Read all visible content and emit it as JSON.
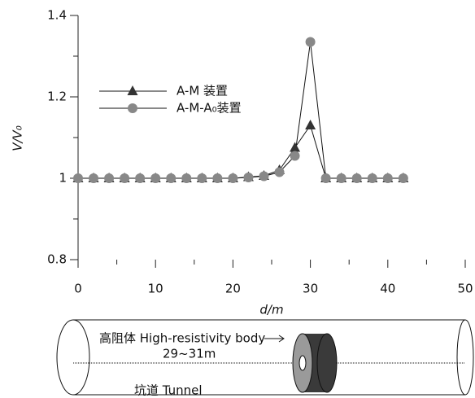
{
  "chart_data": {
    "type": "line",
    "ylabel": "V/V₀",
    "xlabel": "d/m",
    "x": [
      0,
      2,
      4,
      6,
      8,
      10,
      12,
      14,
      16,
      18,
      20,
      22,
      24,
      26,
      28,
      30,
      32,
      34,
      36,
      38,
      40,
      42
    ],
    "series": [
      {
        "name": "A-M 装置",
        "color": "#333333",
        "marker": "triangle",
        "values": [
          1,
          1,
          1,
          1,
          1,
          1,
          1,
          1,
          1,
          1,
          1,
          1.003,
          1.006,
          1.02,
          1.075,
          1.13,
          1,
          1,
          1,
          1,
          1,
          1
        ]
      },
      {
        "name": "A-M-A₀装置",
        "color": "#888888",
        "marker": "circle",
        "values": [
          1,
          1,
          1,
          1,
          1,
          1,
          1,
          1,
          1,
          1,
          1,
          1.002,
          1.005,
          1.015,
          1.055,
          1.335,
          1,
          1,
          1,
          1,
          1,
          1
        ]
      }
    ],
    "xlim": [
      0,
      50
    ],
    "xticks": [
      0,
      10,
      20,
      30,
      40,
      50
    ],
    "xminor": [
      5,
      15,
      25,
      35,
      45
    ],
    "ylim": [
      0.8,
      1.4
    ],
    "yticks": [
      0.8,
      1,
      1.2,
      1.4
    ],
    "yminor": [
      0.9,
      1.1,
      1.3
    ],
    "annotations": [
      "高阻体 High-resistivity body",
      "29~31m",
      "坑道 Tunnel"
    ]
  }
}
